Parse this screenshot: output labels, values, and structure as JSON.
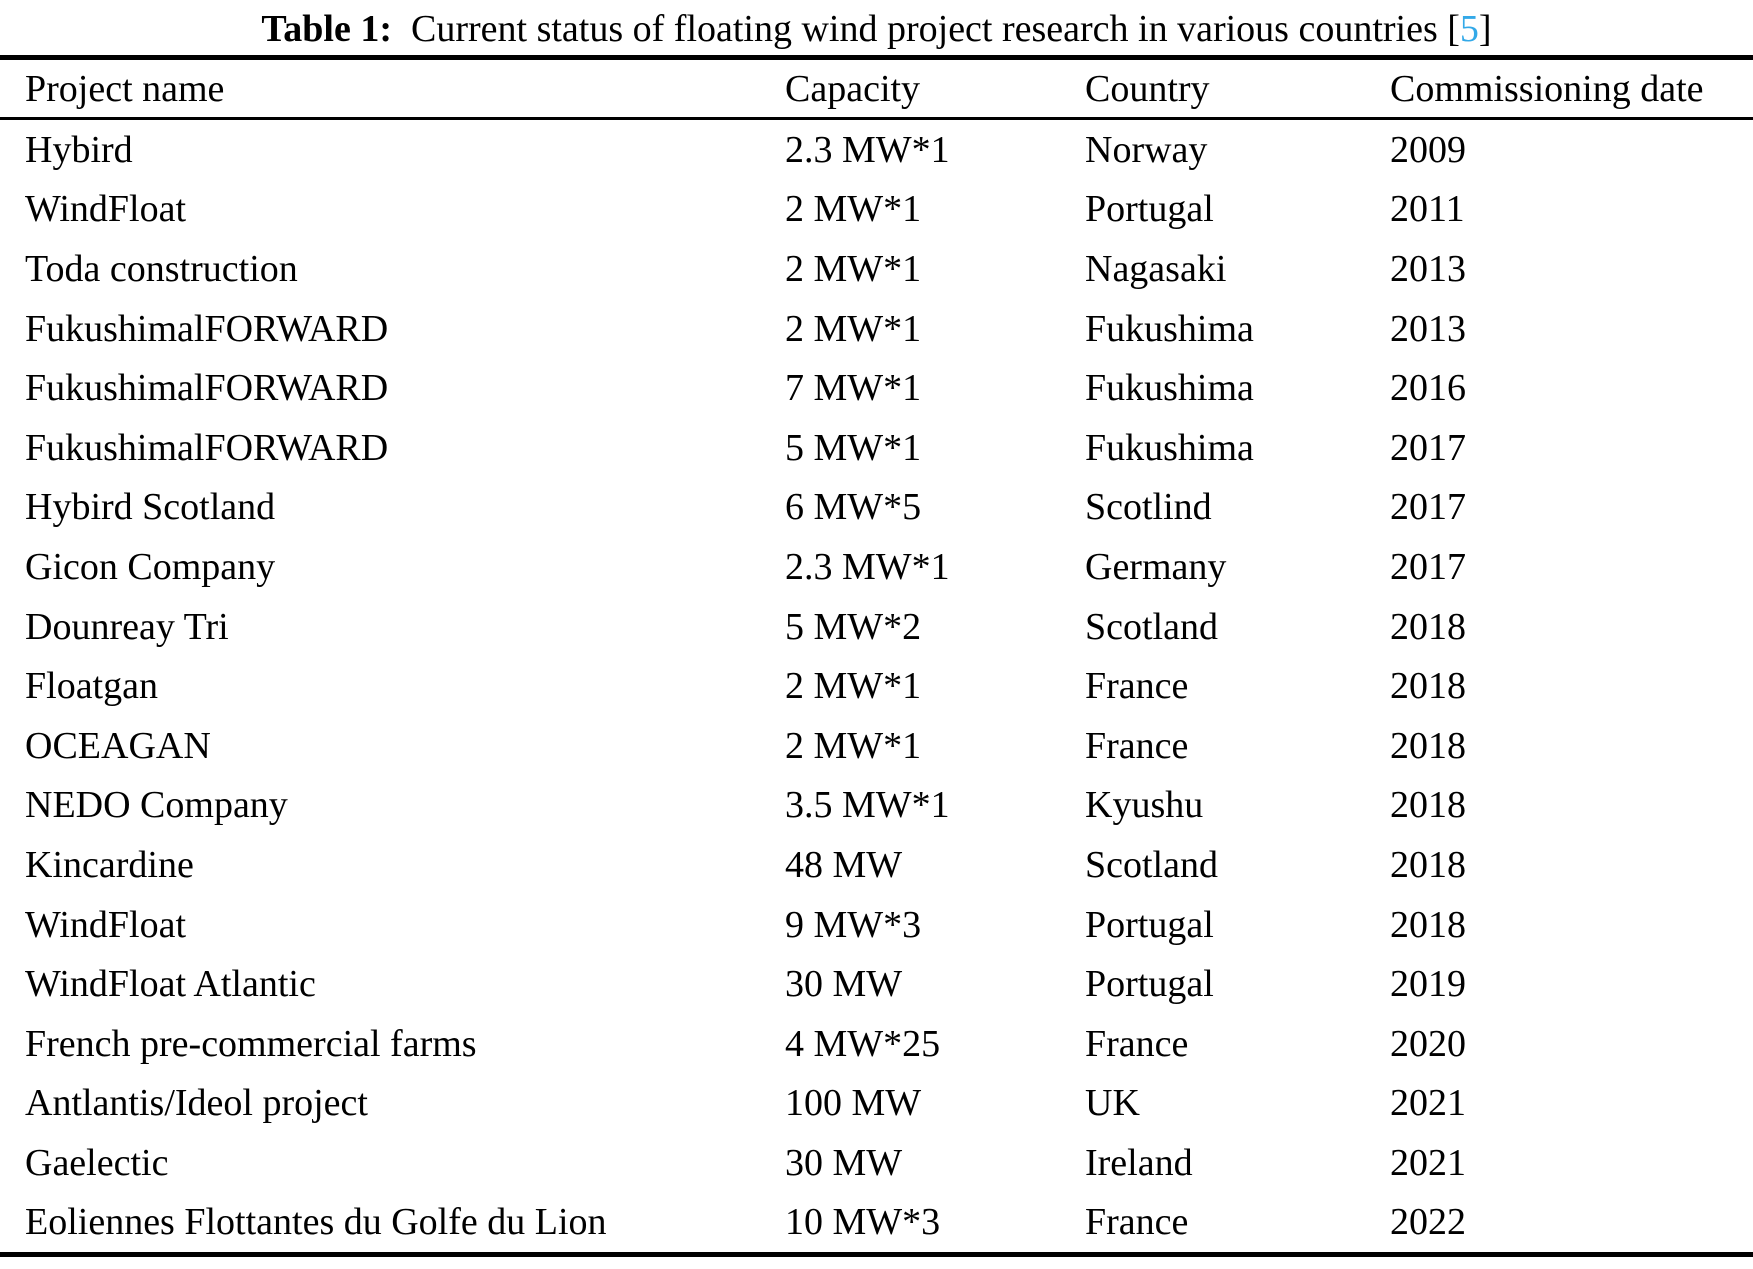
{
  "caption": {
    "label": "Table 1:",
    "text": "Current status of floating wind project research in various countries",
    "citation_open": "[",
    "citation": "5",
    "citation_close": "]",
    "citation_color": "#33a9e8"
  },
  "table": {
    "headers": [
      "Project name",
      "Capacity",
      "Country",
      "Commissioning date"
    ],
    "rows": [
      {
        "project": "Hybird",
        "capacity": "2.3 MW*1",
        "country": "Norway",
        "date": "2009"
      },
      {
        "project": "WindFloat",
        "capacity": "2 MW*1",
        "country": "Portugal",
        "date": "2011"
      },
      {
        "project": "Toda construction",
        "capacity": "2 MW*1",
        "country": "Nagasaki",
        "date": "2013"
      },
      {
        "project": "FukushimalFORWARD",
        "capacity": "2 MW*1",
        "country": "Fukushima",
        "date": "2013"
      },
      {
        "project": "FukushimalFORWARD",
        "capacity": "7 MW*1",
        "country": "Fukushima",
        "date": "2016"
      },
      {
        "project": "FukushimalFORWARD",
        "capacity": "5 MW*1",
        "country": "Fukushima",
        "date": "2017"
      },
      {
        "project": "Hybird Scotland",
        "capacity": "6 MW*5",
        "country": "Scotlind",
        "date": "2017"
      },
      {
        "project": "Gicon Company",
        "capacity": "2.3 MW*1",
        "country": "Germany",
        "date": "2017"
      },
      {
        "project": "Dounreay Tri",
        "capacity": "5 MW*2",
        "country": "Scotland",
        "date": "2018"
      },
      {
        "project": "Floatgan",
        "capacity": "2 MW*1",
        "country": "France",
        "date": "2018"
      },
      {
        "project": "OCEAGAN",
        "capacity": "2 MW*1",
        "country": "France",
        "date": "2018"
      },
      {
        "project": "NEDO Company",
        "capacity": "3.5 MW*1",
        "country": "Kyushu",
        "date": "2018"
      },
      {
        "project": "Kincardine",
        "capacity": "48 MW",
        "country": "Scotland",
        "date": "2018"
      },
      {
        "project": "WindFloat",
        "capacity": "9 MW*3",
        "country": "Portugal",
        "date": "2018"
      },
      {
        "project": "WindFloat Atlantic",
        "capacity": "30 MW",
        "country": "Portugal",
        "date": "2019"
      },
      {
        "project": "French pre-commercial farms",
        "capacity": "4 MW*25",
        "country": "France",
        "date": "2020"
      },
      {
        "project": "Antlantis/Ideol project",
        "capacity": "100 MW",
        "country": "UK",
        "date": "2021"
      },
      {
        "project": "Gaelectic",
        "capacity": "30 MW",
        "country": "Ireland",
        "date": "2021"
      },
      {
        "project": "Eoliennes Flottantes du Golfe du Lion",
        "capacity": "10 MW*3",
        "country": "France",
        "date": "2022"
      }
    ]
  }
}
